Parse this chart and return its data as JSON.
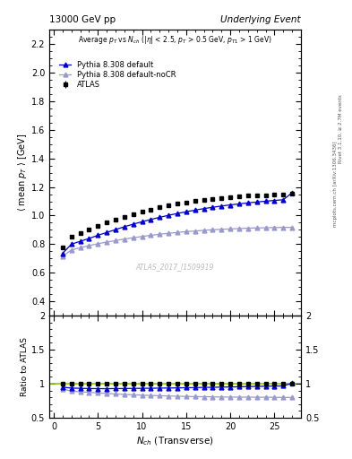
{
  "title_left": "13000 GeV pp",
  "title_right": "Underlying Event",
  "ylabel_main": "$\\langle$ mean $p_T$ $\\rangle$ [GeV]",
  "ylabel_ratio": "Ratio to ATLAS",
  "xlabel": "$N_{ch}$ (Transverse)",
  "annotation": "Average $p_T$ vs $N_{ch}$ ($|\\eta|$ < 2.5, $p_T$ > 0.5 GeV, $p_{T1}$ > 1 GeV)",
  "watermark": "ATLAS_2017_I1509919",
  "rivet_text": "Rivet 3.1.10, ≥ 2.7M events",
  "mcplots_text": "mcplots.cern.ch [arXiv:1306.3436]",
  "ylim_main": [
    0.3,
    2.3
  ],
  "ylim_ratio": [
    0.5,
    2.0
  ],
  "yticks_main": [
    0.4,
    0.6,
    0.8,
    1.0,
    1.2,
    1.4,
    1.6,
    1.8,
    2.0,
    2.2
  ],
  "yticks_ratio": [
    0.5,
    1.0,
    1.5,
    2.0
  ],
  "xlim": [
    -0.5,
    28
  ],
  "xticks": [
    0,
    5,
    10,
    15,
    20,
    25
  ],
  "atlas_x": [
    1,
    2,
    3,
    4,
    5,
    6,
    7,
    8,
    9,
    10,
    11,
    12,
    13,
    14,
    15,
    16,
    17,
    18,
    19,
    20,
    21,
    22,
    23,
    24,
    25,
    26,
    27
  ],
  "atlas_y": [
    0.775,
    0.855,
    0.88,
    0.905,
    0.93,
    0.952,
    0.972,
    0.993,
    1.01,
    1.027,
    1.043,
    1.057,
    1.07,
    1.082,
    1.092,
    1.102,
    1.11,
    1.118,
    1.124,
    1.13,
    1.134,
    1.138,
    1.141,
    1.144,
    1.147,
    1.149,
    1.151
  ],
  "atlas_yerr": [
    0.008,
    0.006,
    0.005,
    0.005,
    0.004,
    0.004,
    0.004,
    0.003,
    0.003,
    0.003,
    0.003,
    0.003,
    0.003,
    0.003,
    0.003,
    0.003,
    0.003,
    0.003,
    0.003,
    0.003,
    0.003,
    0.003,
    0.003,
    0.003,
    0.003,
    0.003,
    0.003
  ],
  "pythia_default_x": [
    1,
    2,
    3,
    4,
    5,
    6,
    7,
    8,
    9,
    10,
    11,
    12,
    13,
    14,
    15,
    16,
    17,
    18,
    19,
    20,
    21,
    22,
    23,
    24,
    25,
    26,
    27
  ],
  "pythia_default_y": [
    0.735,
    0.8,
    0.82,
    0.84,
    0.862,
    0.882,
    0.902,
    0.922,
    0.94,
    0.957,
    0.973,
    0.988,
    1.002,
    1.015,
    1.027,
    1.038,
    1.049,
    1.058,
    1.067,
    1.075,
    1.082,
    1.089,
    1.095,
    1.101,
    1.106,
    1.111,
    1.16
  ],
  "pythia_nocr_x": [
    1,
    2,
    3,
    4,
    5,
    6,
    7,
    8,
    9,
    10,
    11,
    12,
    13,
    14,
    15,
    16,
    17,
    18,
    19,
    20,
    21,
    22,
    23,
    24,
    25,
    26,
    27
  ],
  "pythia_nocr_y": [
    0.715,
    0.76,
    0.775,
    0.79,
    0.803,
    0.815,
    0.825,
    0.836,
    0.845,
    0.854,
    0.862,
    0.87,
    0.876,
    0.882,
    0.888,
    0.892,
    0.897,
    0.901,
    0.904,
    0.907,
    0.909,
    0.912,
    0.914,
    0.915,
    0.916,
    0.917,
    0.918
  ],
  "color_atlas": "#000000",
  "color_pythia_default": "#0000cc",
  "color_pythia_nocr": "#9999cc",
  "color_ref_line": "#80cc00"
}
